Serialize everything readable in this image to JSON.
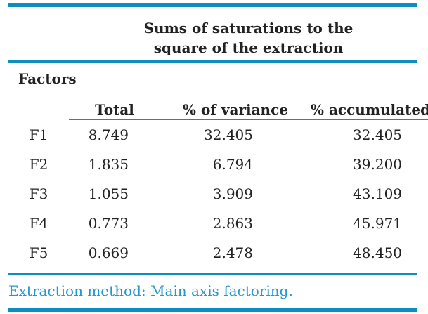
{
  "colors": {
    "rule": "#0d8dc0",
    "footnote": "#2397cf",
    "text": "#222222"
  },
  "table": {
    "spanner": "Sums of saturations to the square of the extraction",
    "stub_header": "Factors",
    "columns": [
      "Total",
      "% of variance",
      "% accumulated"
    ],
    "rows": [
      [
        "F1",
        "8.749",
        "32.405",
        "32.405"
      ],
      [
        "F2",
        "1.835",
        "6.794",
        "39.200"
      ],
      [
        "F3",
        "1.055",
        "3.909",
        "43.109"
      ],
      [
        "F4",
        "0.773",
        "2.863",
        "45.971"
      ],
      [
        "F5",
        "0.669",
        "2.478",
        "48.450"
      ]
    ],
    "footnote": "Extraction method: Main axis factoring."
  }
}
